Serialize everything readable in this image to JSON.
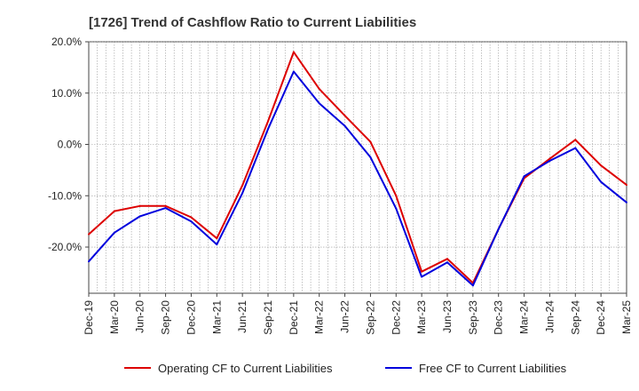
{
  "chart_data": {
    "type": "line",
    "title": "[1726]  Trend of Cashflow Ratio to Current Liabilities",
    "xlabel": "",
    "ylabel": "",
    "x_ticks": [
      "Dec-19",
      "Mar-20",
      "Jun-20",
      "Sep-20",
      "Dec-20",
      "Mar-21",
      "Jun-21",
      "Sep-21",
      "Dec-21",
      "Mar-22",
      "Jun-22",
      "Sep-22",
      "Dec-22",
      "Mar-23",
      "Jun-23",
      "Sep-23",
      "Dec-23",
      "Mar-24",
      "Jun-24",
      "Sep-24",
      "Dec-24",
      "Mar-25"
    ],
    "x_dates": [
      "2019-12",
      "2020-01",
      "2020-02",
      "2020-03",
      "2020-04",
      "2020-05",
      "2020-06",
      "2020-07",
      "2020-08",
      "2020-09",
      "2020-10",
      "2020-11",
      "2020-12",
      "2021-01",
      "2021-02",
      "2021-03",
      "2021-04",
      "2021-05",
      "2021-06",
      "2021-07",
      "2021-08",
      "2021-09",
      "2021-10",
      "2021-11",
      "2021-12",
      "2022-01",
      "2022-02",
      "2022-03",
      "2022-04",
      "2022-05",
      "2022-06",
      "2022-07",
      "2022-08",
      "2022-09",
      "2022-10",
      "2022-11",
      "2022-12",
      "2023-01",
      "2023-02",
      "2023-03",
      "2023-04",
      "2023-05",
      "2023-06",
      "2023-07",
      "2023-08",
      "2023-09",
      "2023-10",
      "2023-11",
      "2023-12",
      "2024-01",
      "2024-02",
      "2024-03",
      "2024-04",
      "2024-05",
      "2024-06",
      "2024-07",
      "2024-08",
      "2024-09",
      "2024-10",
      "2024-11",
      "2024-12",
      "2025-01",
      "2025-02",
      "2025-03"
    ],
    "y_ticks": [
      "20.0%",
      "10.0%",
      "0.0%",
      "-10.0%",
      "-20.0%"
    ],
    "y_tick_values": [
      20,
      10,
      0,
      -10,
      -20
    ],
    "ylim": [
      -29,
      20
    ],
    "grid": true,
    "legend_position": "bottom",
    "series": [
      {
        "name": "Operating CF to Current Liabilities",
        "color": "#dd0000",
        "points": [
          [
            "2019-12",
            -17.5
          ],
          [
            "2020-03",
            -13.0
          ],
          [
            "2020-06",
            -12.0
          ],
          [
            "2020-09",
            -12.0
          ],
          [
            "2020-12",
            -14.2
          ],
          [
            "2021-03",
            -18.3
          ],
          [
            "2021-06",
            -8.0
          ],
          [
            "2021-09",
            4.5
          ],
          [
            "2021-12",
            18.0
          ],
          [
            "2022-03",
            10.8
          ],
          [
            "2022-06",
            5.6
          ],
          [
            "2022-09",
            0.5
          ],
          [
            "2022-12",
            -10.0
          ],
          [
            "2023-03",
            -24.8
          ],
          [
            "2023-06",
            -22.3
          ],
          [
            "2023-09",
            -27.0
          ],
          [
            "2023-12",
            -16.5
          ],
          [
            "2024-03",
            -6.6
          ],
          [
            "2024-06",
            -2.8
          ],
          [
            "2024-09",
            0.9
          ],
          [
            "2024-12",
            -4.1
          ],
          [
            "2025-03",
            -7.9
          ]
        ]
      },
      {
        "name": "Free CF to Current Liabilities",
        "color": "#0000dd",
        "points": [
          [
            "2019-12",
            -22.8
          ],
          [
            "2020-03",
            -17.2
          ],
          [
            "2020-06",
            -14.0
          ],
          [
            "2020-09",
            -12.4
          ],
          [
            "2020-12",
            -15.0
          ],
          [
            "2021-03",
            -19.5
          ],
          [
            "2021-06",
            -9.5
          ],
          [
            "2021-09",
            3.0
          ],
          [
            "2021-12",
            14.2
          ],
          [
            "2022-03",
            8.0
          ],
          [
            "2022-06",
            3.6
          ],
          [
            "2022-09",
            -2.5
          ],
          [
            "2022-12",
            -12.5
          ],
          [
            "2023-03",
            -25.8
          ],
          [
            "2023-06",
            -23.0
          ],
          [
            "2023-09",
            -27.5
          ],
          [
            "2023-12",
            -16.5
          ],
          [
            "2024-03",
            -6.2
          ],
          [
            "2024-06",
            -3.2
          ],
          [
            "2024-09",
            -0.7
          ],
          [
            "2024-12",
            -7.3
          ],
          [
            "2025-03",
            -11.3
          ]
        ]
      }
    ]
  }
}
